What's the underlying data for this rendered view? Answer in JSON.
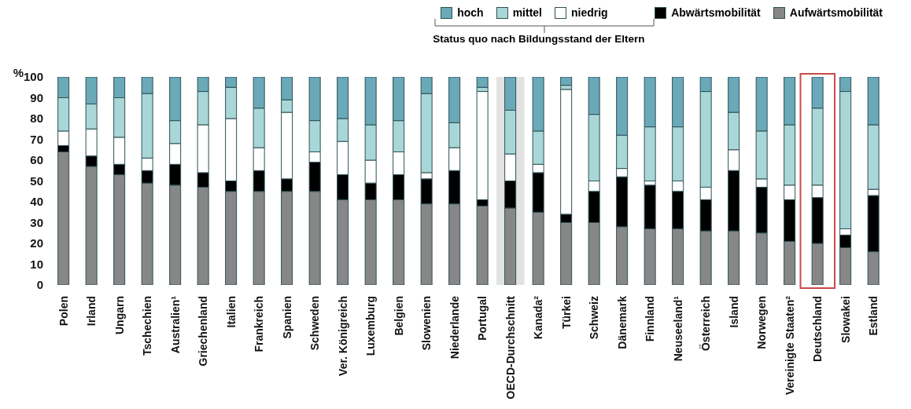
{
  "chart_data": {
    "type": "bar",
    "stacked": true,
    "ylabel": "%",
    "legend_title": "Status quo nach Bildungsstand der Eltern",
    "legend": "top right",
    "ylim": [
      0,
      100
    ],
    "yticks": [
      0,
      10,
      20,
      30,
      40,
      50,
      60,
      70,
      80,
      90,
      100
    ],
    "categories": [
      "Polen",
      "Irland",
      "Ungarn",
      "Tschechien",
      "Australien¹",
      "Griechenland",
      "Italien",
      "Frankreich",
      "Spanien",
      "Schweden",
      "Ver. Königreich",
      "Luxemburg",
      "Belgien",
      "Slowenien",
      "Niederlande",
      "Portugal",
      "OECD-Durchschnitt",
      "Kanada²",
      "Türkei",
      "Schweiz",
      "Dänemark",
      "Finnland",
      "Neuseeland¹",
      "Österreich",
      "Island",
      "Norwegen",
      "Vereinigte Staaten²",
      "Deutschland",
      "Slowakei",
      "Estland"
    ],
    "series": [
      {
        "name": "Aufwärtsmobilität",
        "color": "#878787",
        "values": [
          64,
          57,
          53,
          49,
          48,
          47,
          45,
          45,
          45,
          45,
          41,
          41,
          41,
          39,
          39,
          38,
          37,
          35,
          30,
          30,
          28,
          27,
          27,
          26,
          26,
          25,
          21,
          20,
          18,
          16
        ]
      },
      {
        "name": "Abwärtsmobilität",
        "color": "#000000",
        "values": [
          3,
          5,
          5,
          6,
          10,
          7,
          5,
          10,
          6,
          14,
          12,
          8,
          12,
          12,
          16,
          3,
          13,
          19,
          4,
          15,
          24,
          21,
          18,
          15,
          29,
          22,
          20,
          22,
          6,
          27
        ]
      },
      {
        "name": "niedrig",
        "color": "#ffffff",
        "values": [
          7,
          13,
          13,
          6,
          10,
          23,
          30,
          11,
          32,
          5,
          16,
          11,
          11,
          3,
          11,
          52,
          13,
          4,
          60,
          5,
          4,
          2,
          5,
          6,
          10,
          4,
          7,
          6,
          3,
          3
        ]
      },
      {
        "name": "mittel",
        "color": "#a9d7d8",
        "values": [
          16,
          12,
          19,
          31,
          11,
          16,
          15,
          19,
          6,
          15,
          11,
          17,
          15,
          38,
          12,
          2,
          21,
          16,
          2,
          32,
          16,
          26,
          26,
          46,
          18,
          23,
          29,
          37,
          66,
          31
        ]
      },
      {
        "name": "hoch",
        "color": "#6aa9b7",
        "values": [
          10,
          13,
          10,
          8,
          21,
          7,
          5,
          15,
          11,
          21,
          20,
          23,
          21,
          8,
          22,
          5,
          16,
          26,
          4,
          18,
          28,
          24,
          24,
          7,
          17,
          26,
          23,
          15,
          7,
          23
        ]
      }
    ],
    "bands": [
      {
        "axis": "x",
        "from": "OECD-Durchschnitt",
        "to": "OECD-Durchschnitt",
        "color": "#e2e2e2"
      }
    ]
  }
}
